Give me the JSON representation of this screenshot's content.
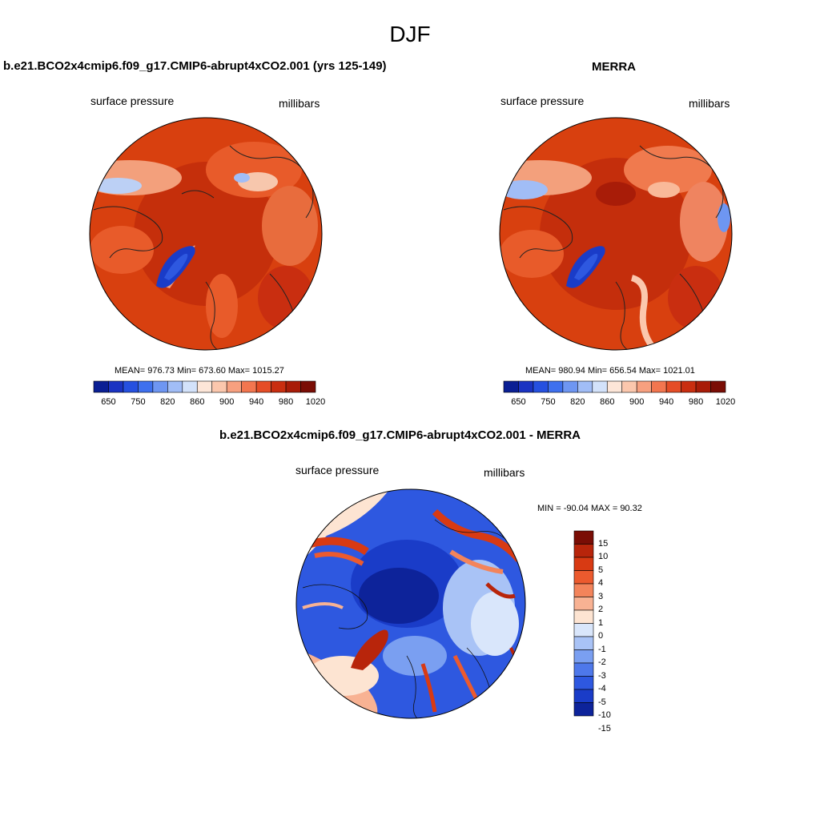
{
  "title": "DJF",
  "panels": [
    {
      "title": "b.e21.BCO2x4cmip6.f09_g17.CMIP6-abrupt4xCO2.001 (yrs 125-149)",
      "left_label": "surface pressure",
      "right_label": "millibars",
      "stats": "MEAN= 976.73  Min= 673.60  Max= 1015.27"
    },
    {
      "title": "MERRA",
      "left_label": "surface pressure",
      "right_label": "millibars",
      "stats": "MEAN= 980.94  Min= 656.54  Max= 1021.01"
    },
    {
      "title": "b.e21.BCO2x4cmip6.f09_g17.CMIP6-abrupt4xCO2.001 - MERRA",
      "left_label": "surface pressure",
      "right_label": "millibars",
      "stats": "MIN = -90.04 MAX =  90.32"
    }
  ],
  "colorbar_abs": {
    "colors": [
      "#0a1f94",
      "#1a33c2",
      "#2550e0",
      "#3e70ee",
      "#6e96f2",
      "#a1bdf6",
      "#d3e2fa",
      "#fde6d8",
      "#fbc7ad",
      "#f7a07f",
      "#f2764f",
      "#e54d26",
      "#c92e10",
      "#a81c08",
      "#7a0d05"
    ],
    "tick_labels": [
      "650",
      "750",
      "820",
      "860",
      "900",
      "940",
      "980",
      "1020"
    ]
  },
  "colorbar_diff": {
    "colors": [
      "#7a0d05",
      "#b8250b",
      "#d83a13",
      "#ec5a2e",
      "#f3845b",
      "#f8b293",
      "#fde4d2",
      "#d9e6fb",
      "#a9c3f6",
      "#7a9ff1",
      "#4e78ea",
      "#2e58e0",
      "#1a3cc8",
      "#0d239a"
    ],
    "tick_labels": [
      "15",
      "10",
      "5",
      "4",
      "3",
      "2",
      "1",
      "0",
      "-1",
      "-2",
      "-3",
      "-4",
      "-5",
      "-10",
      "-15"
    ]
  }
}
